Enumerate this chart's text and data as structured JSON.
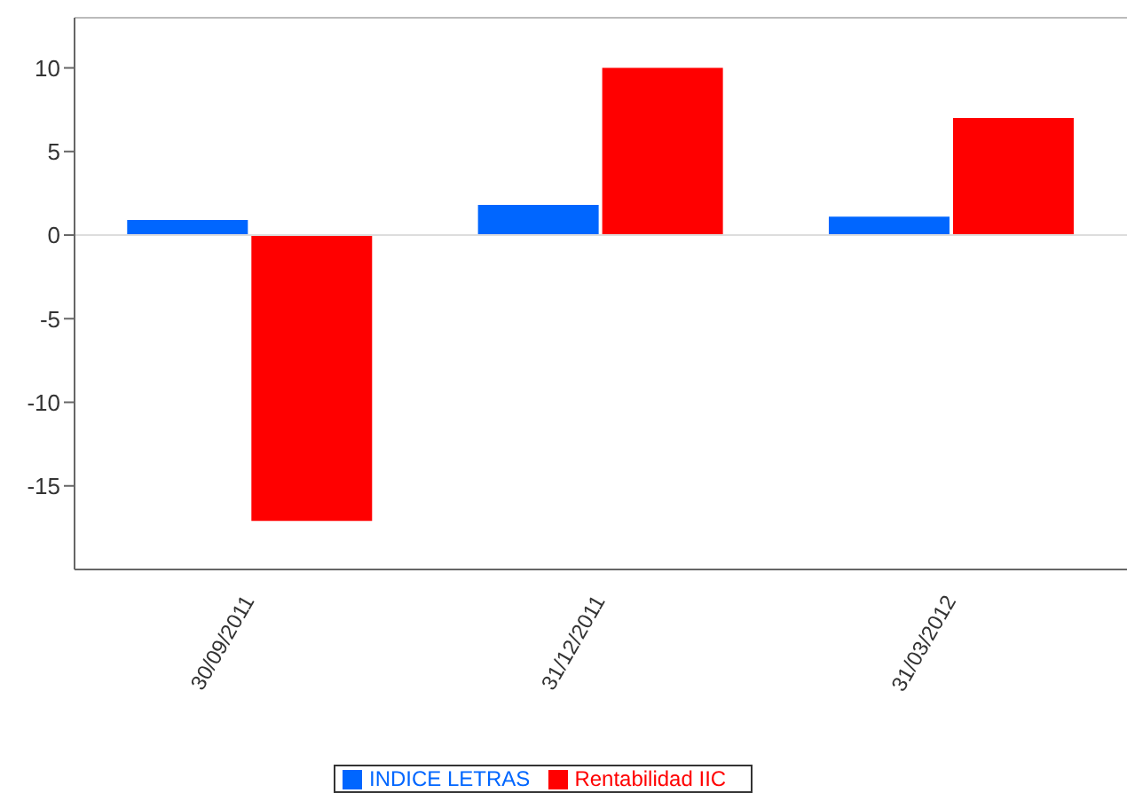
{
  "chart_data": {
    "type": "bar",
    "categories": [
      "30/09/2011",
      "31/12/2011",
      "31/03/2012"
    ],
    "series": [
      {
        "name": "INDICE LETRAS",
        "color": "#0066ff",
        "values": [
          0.9,
          1.8,
          1.1
        ]
      },
      {
        "name": "Rentabilidad IIC",
        "color": "#ff0000",
        "values": [
          -17.1,
          10,
          7
        ]
      }
    ],
    "ylim": [
      -20,
      13
    ],
    "yticks": [
      -15,
      -10,
      -5,
      0,
      5,
      10
    ],
    "grid": false,
    "legend": "bottom",
    "ref_lines": [
      {
        "axis": "y",
        "value": 0,
        "color": "#dddddd"
      }
    ]
  }
}
